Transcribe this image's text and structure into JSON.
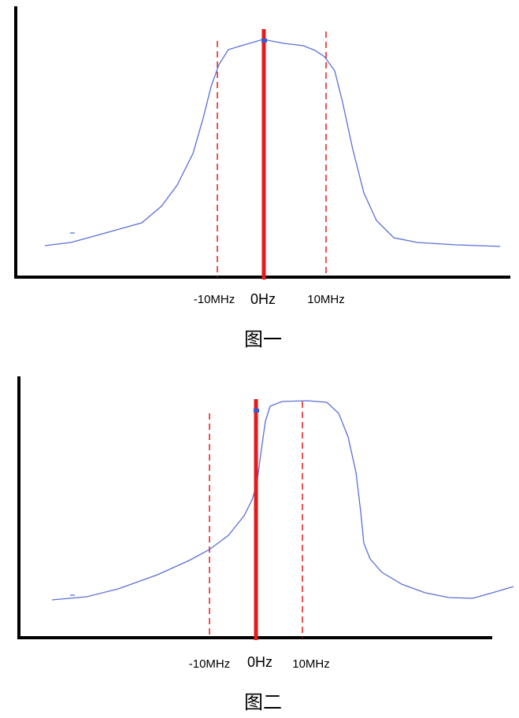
{
  "figure_1": {
    "left_label": "-10MHz",
    "center_label": "0Hz",
    "right_label": "10MHz",
    "caption": "图一"
  },
  "figure_2": {
    "left_label": "-10MHz",
    "center_label": "0Hz",
    "right_label": "10MHz",
    "caption": "图二"
  }
}
